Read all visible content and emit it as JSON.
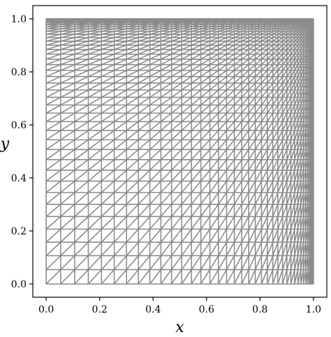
{
  "figure": {
    "xlabel": "x",
    "ylabel": "y",
    "mesh_color": "#8c8c8c",
    "frame_color": "#000000"
  },
  "chart_data": {
    "type": "triangular-mesh",
    "description_of_mesh": "",
    "domain": {
      "x": [
        0.0,
        1.0
      ],
      "y": [
        0.0,
        1.0
      ]
    },
    "xlim": [
      -0.05,
      1.05
    ],
    "ylim": [
      -0.05,
      1.05
    ],
    "x_ticks": [
      "0.0",
      "0.2",
      "0.4",
      "0.6",
      "0.8",
      "1.0"
    ],
    "y_ticks": [
      "0.0",
      "0.2",
      "0.4",
      "0.6",
      "0.8",
      "1.0"
    ],
    "x_tick_values": [
      0.0,
      0.2,
      0.4,
      0.6,
      0.8,
      1.0
    ],
    "y_tick_values": [
      0.0,
      0.2,
      0.4,
      0.6,
      0.8,
      1.0
    ],
    "grid": "off",
    "mesh_divisions": {
      "nx": 40,
      "ny": 40
    },
    "refinement": "graded toward x = 1 and y = 1"
  }
}
